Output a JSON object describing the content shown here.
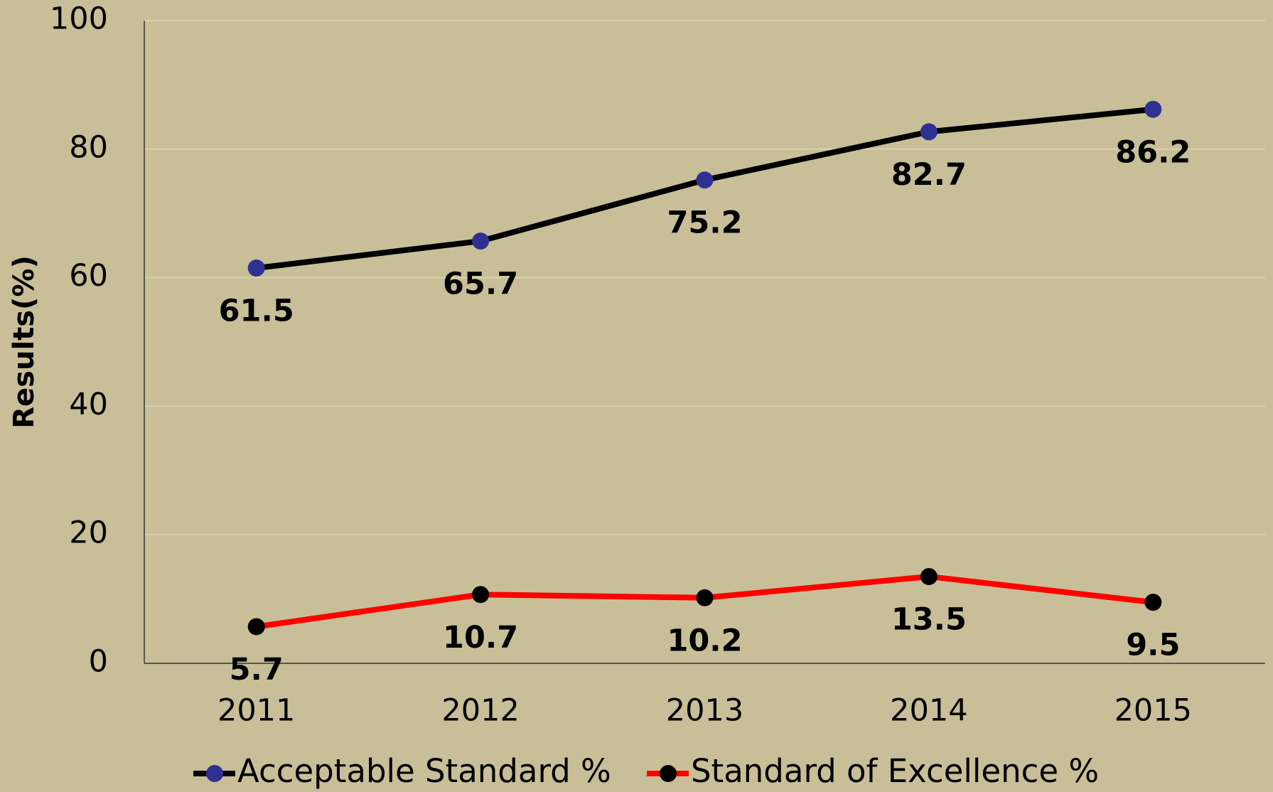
{
  "chart_data": {
    "type": "line",
    "y_label": "Results(%)",
    "categories": [
      "2011",
      "2012",
      "2013",
      "2014",
      "2015"
    ],
    "series": [
      {
        "name": "Acceptable Standard %",
        "color": "#000000",
        "marker_color": "#2e3192",
        "values": [
          61.5,
          65.7,
          75.2,
          82.7,
          86.2
        ]
      },
      {
        "name": "Standard of Excellence %",
        "color": "#ff0000",
        "marker_color": "#000000",
        "values": [
          5.7,
          10.7,
          10.2,
          13.5,
          9.5
        ]
      }
    ],
    "ylim": [
      0,
      100
    ],
    "yticks": [
      0,
      20,
      40,
      60,
      80,
      100
    ],
    "grid": true,
    "legend": "bottom"
  }
}
